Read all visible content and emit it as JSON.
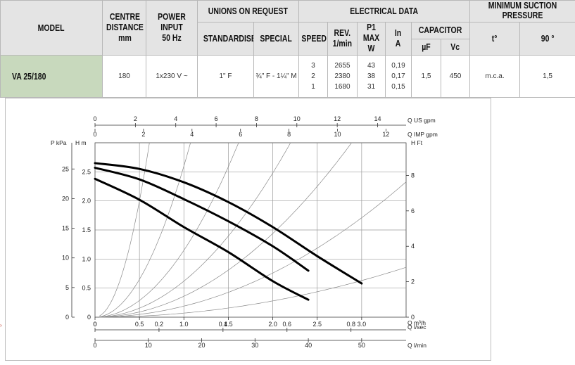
{
  "spec_table": {
    "headers": {
      "model": "MODEL",
      "centre_distance": [
        "CENTRE",
        "DISTANCE",
        "mm"
      ],
      "power_input": [
        "POWER INPUT",
        "50 Hz"
      ],
      "unions": "UNIONS ON REQUEST",
      "standardised": "STANDARDISED",
      "special": "SPECIAL",
      "electrical": "ELECTRICAL DATA",
      "speed": "SPEED",
      "rev": [
        "REV.",
        "1/min"
      ],
      "p1max": [
        "P1 MAX",
        "W"
      ],
      "in": [
        "In",
        "A"
      ],
      "capacitor": "CAPACITOR",
      "uf": "µF",
      "vc": "Vc",
      "suction": "MINIMUM SUCTION PRESSURE",
      "t": "t°",
      "t90": "90 °"
    },
    "row": {
      "model": "VA 25/180",
      "centre_distance": "180",
      "power_input": "1x230 V ~",
      "standardised": "1\" F",
      "special": "¾\" F - 1¼\" M",
      "speeds": [
        "3",
        "2",
        "1"
      ],
      "rev": [
        "2655",
        "2380",
        "1680"
      ],
      "p1max": [
        "43",
        "38",
        "31"
      ],
      "in": [
        "0,19",
        "0,17",
        "0,15"
      ],
      "uf": "1,5",
      "vc": "450",
      "t_unit": "m.c.a.",
      "t90_value": "1,5"
    }
  },
  "chart_data": {
    "type": "line",
    "axes": {
      "bottom_main": {
        "label": "Q  m³/h",
        "ticks": [
          "0",
          "0.5",
          "1.0",
          "1.5",
          "2.0",
          "2.5",
          "3.0"
        ],
        "range": [
          0,
          3.5
        ]
      },
      "bottom_lsec": {
        "label": "Q  l/sec",
        "ticks": [
          "0",
          "0.2",
          "0.4",
          "0.6",
          "0.8"
        ]
      },
      "bottom_lmin": {
        "label": "Q  l/min",
        "ticks": [
          "0",
          "10",
          "20",
          "30",
          "40",
          "50"
        ]
      },
      "top_us": {
        "label": "Q  US gpm",
        "ticks": [
          "0",
          "2",
          "4",
          "6",
          "8",
          "10",
          "12",
          "14"
        ]
      },
      "top_imp": {
        "label": "Q  IMP gpm",
        "ticks": [
          "0",
          "2",
          "4",
          "6",
          "8",
          "10",
          "12"
        ]
      },
      "left_h": {
        "label": "H m",
        "ticks": [
          "0",
          "0.5",
          "1.0",
          "1.5",
          "2.0",
          "2.5"
        ],
        "range": [
          0,
          3.0
        ]
      },
      "left_kpa": {
        "label": "P kPa",
        "ticks": [
          "0",
          "5",
          "10",
          "15",
          "20",
          "25"
        ]
      },
      "right_ft": {
        "label": "H Ft",
        "ticks": [
          "0",
          "2",
          "4",
          "6",
          "8"
        ]
      }
    },
    "series": [
      {
        "values": [
          [
            0,
            2.65
          ],
          [
            0.5,
            2.55
          ],
          [
            1.0,
            2.32
          ],
          [
            1.5,
            1.98
          ],
          [
            2.0,
            1.55
          ],
          [
            2.5,
            1.05
          ],
          [
            3.0,
            0.58
          ]
        ]
      },
      {
        "values": [
          [
            0,
            2.57
          ],
          [
            0.5,
            2.37
          ],
          [
            1.0,
            2.03
          ],
          [
            1.5,
            1.65
          ],
          [
            2.0,
            1.22
          ],
          [
            2.4,
            0.8
          ]
        ]
      },
      {
        "values": [
          [
            0,
            2.38
          ],
          [
            0.5,
            2.02
          ],
          [
            1.0,
            1.55
          ],
          [
            1.5,
            1.12
          ],
          [
            2.0,
            0.62
          ],
          [
            2.4,
            0.3
          ]
        ]
      }
    ],
    "system_curves_k": [
      8,
      2.6,
      1.15,
      0.62,
      0.36,
      0.19,
      0.07
    ],
    "grid": true
  }
}
